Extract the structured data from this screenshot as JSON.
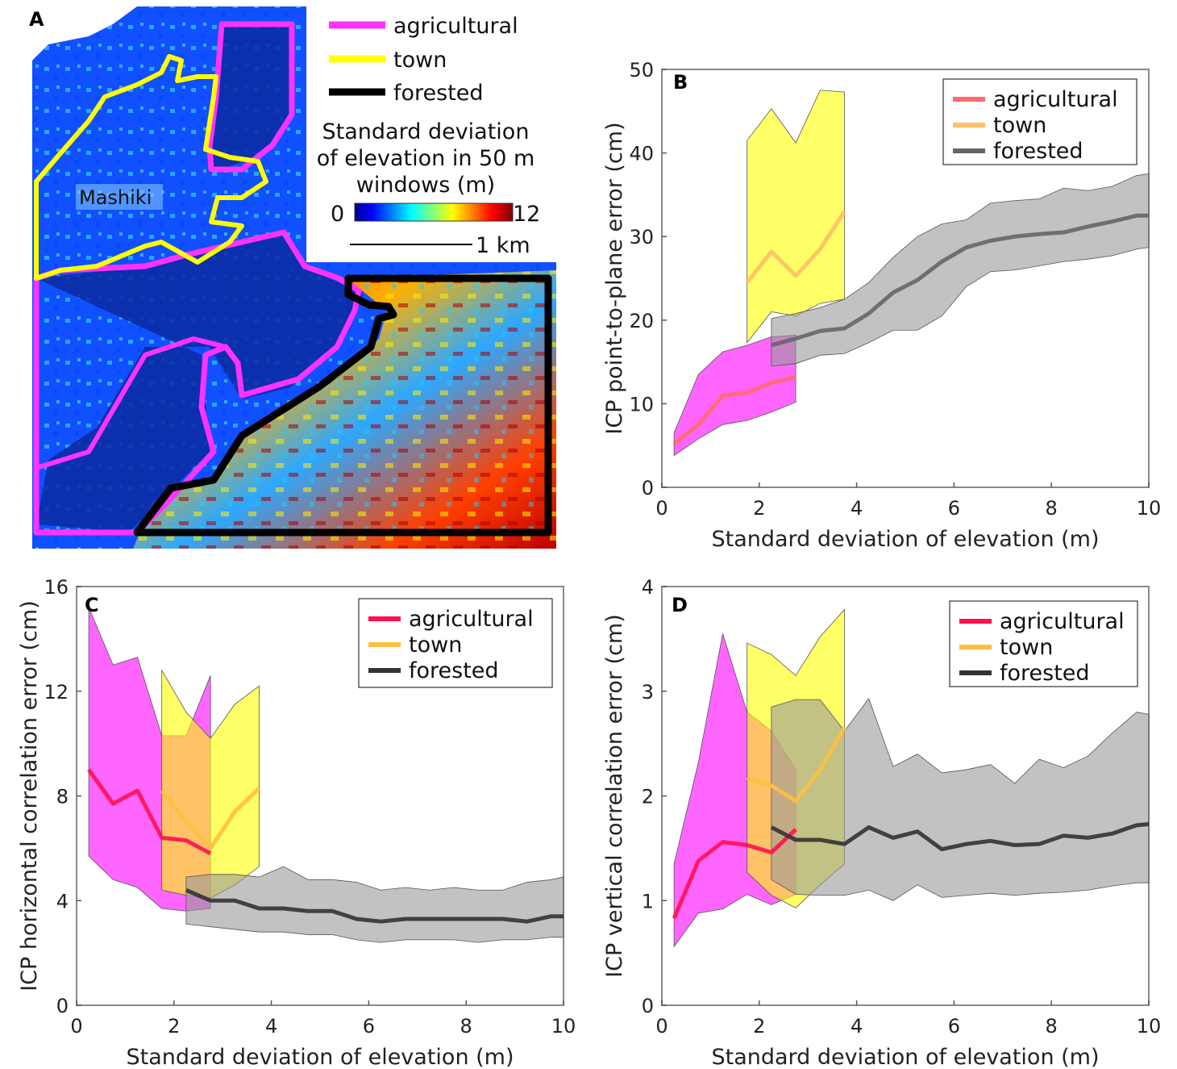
{
  "panel_a": {
    "letter": "A",
    "legend": [
      {
        "label": "agricultural",
        "color": "#ff33ff"
      },
      {
        "label": "town",
        "color": "#ffff00"
      },
      {
        "label": "forested",
        "color": "#000000"
      }
    ],
    "colorbar_title_1": "Standard deviation",
    "colorbar_title_2": "of elevation in 50 m",
    "colorbar_title_3": "windows (m)",
    "colorbar_min": "0",
    "colorbar_max": "12",
    "scalebar_label": "1 km",
    "place_label": "Mashiki"
  },
  "chart_data": [
    {
      "panel": "B",
      "type": "line",
      "xlabel": "Standard deviation of elevation (m)",
      "ylabel": "ICP point-to-plane error (cm)",
      "xlim": [
        0,
        10
      ],
      "ylim": [
        0,
        50
      ],
      "xticks": [
        0,
        2,
        4,
        6,
        8,
        10
      ],
      "yticks": [
        0,
        10,
        20,
        30,
        40,
        50
      ],
      "legend_position": "top-right",
      "series": [
        {
          "name": "agricultural",
          "line_color": "#ff6a6a",
          "band_color": "#ff00ff",
          "x": [
            0.25,
            0.75,
            1.25,
            1.75,
            2.25,
            2.75
          ],
          "y": [
            5.2,
            7.5,
            11.0,
            11.3,
            12.5,
            13.2
          ],
          "lower": [
            3.8,
            5.8,
            7.5,
            8.0,
            9.0,
            10.2
          ],
          "upper": [
            6.5,
            13.5,
            16.2,
            17.0,
            18.0,
            18.2
          ]
        },
        {
          "name": "town",
          "line_color": "#ffbf66",
          "band_color": "#ffff00",
          "x": [
            1.75,
            2.25,
            2.75,
            3.25,
            3.75
          ],
          "y": [
            24.5,
            28.2,
            25.3,
            28.5,
            33.0
          ],
          "lower": [
            17.3,
            21.0,
            20.5,
            22.0,
            22.5
          ],
          "upper": [
            41.5,
            45.3,
            41.2,
            47.5,
            47.3
          ]
        },
        {
          "name": "forested",
          "line_color": "#666666",
          "band_color": "#9a9a9a",
          "x": [
            2.25,
            2.75,
            3.25,
            3.75,
            4.25,
            4.75,
            5.25,
            5.75,
            6.25,
            6.75,
            7.25,
            7.75,
            8.25,
            8.75,
            9.25,
            9.75,
            10.0
          ],
          "y": [
            17.0,
            17.8,
            18.7,
            19.0,
            20.8,
            23.3,
            24.8,
            27.0,
            28.7,
            29.5,
            30.0,
            30.3,
            30.5,
            31.2,
            31.8,
            32.5,
            32.5
          ],
          "lower": [
            14.5,
            14.8,
            15.8,
            16.0,
            17.3,
            18.8,
            18.8,
            20.5,
            24.0,
            25.8,
            26.0,
            26.5,
            27.0,
            27.3,
            27.7,
            28.5,
            28.7
          ],
          "upper": [
            20.2,
            20.8,
            21.5,
            22.5,
            24.5,
            27.5,
            30.0,
            31.5,
            32.0,
            34.0,
            34.3,
            34.5,
            35.8,
            35.5,
            36.0,
            37.3,
            37.5
          ]
        }
      ]
    },
    {
      "panel": "C",
      "type": "line",
      "xlabel": "Standard deviation of elevation (m)",
      "ylabel": "ICP horizontal correlation error (cm)",
      "xlim": [
        0,
        10
      ],
      "ylim": [
        0,
        16
      ],
      "xticks": [
        0,
        2,
        4,
        6,
        8,
        10
      ],
      "yticks": [
        0,
        4,
        8,
        12,
        16
      ],
      "legend_position": "top-right",
      "series": [
        {
          "name": "agricultural",
          "line_color": "#ff1050",
          "band_color": "#ff00ff",
          "x": [
            0.25,
            0.75,
            1.25,
            1.75,
            2.25,
            2.75
          ],
          "y": [
            9.0,
            7.7,
            8.2,
            6.4,
            6.3,
            5.8
          ],
          "lower": [
            5.7,
            4.8,
            4.5,
            3.7,
            3.6,
            3.7
          ],
          "upper": [
            15.2,
            13.0,
            13.3,
            10.3,
            10.3,
            12.6
          ]
        },
        {
          "name": "town",
          "line_color": "#ffbf40",
          "band_color": "#ffff00",
          "x": [
            1.75,
            2.25,
            2.75,
            3.25,
            3.75
          ],
          "y": [
            8.2,
            7.0,
            6.0,
            7.4,
            8.3
          ],
          "lower": [
            4.4,
            4.2,
            4.1,
            4.6,
            5.3
          ],
          "upper": [
            12.8,
            11.2,
            10.2,
            11.5,
            12.2
          ]
        },
        {
          "name": "forested",
          "line_color": "#333333",
          "band_color": "#9a9a9a",
          "x": [
            2.25,
            2.75,
            3.25,
            3.75,
            4.25,
            4.75,
            5.25,
            5.75,
            6.25,
            6.75,
            7.25,
            7.75,
            8.25,
            8.75,
            9.25,
            9.75,
            10.0
          ],
          "y": [
            4.4,
            4.0,
            4.0,
            3.7,
            3.7,
            3.6,
            3.6,
            3.3,
            3.2,
            3.3,
            3.3,
            3.3,
            3.3,
            3.3,
            3.2,
            3.4,
            3.4
          ],
          "lower": [
            3.1,
            3.0,
            2.9,
            2.8,
            2.8,
            2.7,
            2.7,
            2.5,
            2.4,
            2.5,
            2.5,
            2.5,
            2.4,
            2.5,
            2.5,
            2.6,
            2.6
          ],
          "upper": [
            4.9,
            5.0,
            5.0,
            4.9,
            5.3,
            4.8,
            4.8,
            4.7,
            4.4,
            4.5,
            4.4,
            4.5,
            4.4,
            4.4,
            4.7,
            4.8,
            4.9
          ]
        }
      ]
    },
    {
      "panel": "D",
      "type": "line",
      "xlabel": "Standard deviation of elevation (m)",
      "ylabel": "ICP vertical correlation error (cm)",
      "xlim": [
        0,
        10
      ],
      "ylim": [
        0,
        4
      ],
      "xticks": [
        0,
        2,
        4,
        6,
        8,
        10
      ],
      "yticks": [
        0,
        1,
        2,
        3,
        4
      ],
      "legend_position": "top-right",
      "series": [
        {
          "name": "agricultural",
          "line_color": "#ff1050",
          "band_color": "#ff00ff",
          "x": [
            0.25,
            0.75,
            1.25,
            1.75,
            2.25,
            2.75
          ],
          "y": [
            0.83,
            1.38,
            1.56,
            1.53,
            1.46,
            1.68
          ],
          "lower": [
            0.56,
            0.88,
            0.92,
            1.06,
            0.96,
            1.06
          ],
          "upper": [
            1.35,
            2.32,
            3.55,
            2.8,
            2.62,
            2.25
          ]
        },
        {
          "name": "town",
          "line_color": "#ffbf40",
          "band_color": "#ffff00",
          "x": [
            1.75,
            2.25,
            2.75,
            3.25,
            3.75
          ],
          "y": [
            2.17,
            2.1,
            1.95,
            2.25,
            2.65
          ],
          "lower": [
            1.27,
            1.05,
            0.93,
            1.15,
            1.35
          ],
          "upper": [
            3.46,
            3.35,
            3.15,
            3.52,
            3.78
          ]
        },
        {
          "name": "forested",
          "line_color": "#333333",
          "band_color": "#9a9a9a",
          "x": [
            2.25,
            2.75,
            3.25,
            3.75,
            4.25,
            4.75,
            5.25,
            5.75,
            6.25,
            6.75,
            7.25,
            7.75,
            8.25,
            8.75,
            9.25,
            9.75,
            10.0
          ],
          "y": [
            1.7,
            1.58,
            1.58,
            1.54,
            1.7,
            1.6,
            1.66,
            1.49,
            1.54,
            1.57,
            1.53,
            1.54,
            1.62,
            1.6,
            1.64,
            1.72,
            1.73
          ],
          "lower": [
            1.2,
            1.06,
            1.05,
            1.05,
            1.1,
            1.0,
            1.15,
            1.03,
            1.05,
            1.07,
            1.05,
            1.07,
            1.08,
            1.1,
            1.14,
            1.17,
            1.17
          ],
          "upper": [
            2.85,
            2.92,
            2.92,
            2.62,
            2.93,
            2.28,
            2.4,
            2.22,
            2.25,
            2.3,
            2.12,
            2.35,
            2.27,
            2.38,
            2.6,
            2.8,
            2.78
          ]
        }
      ]
    }
  ]
}
